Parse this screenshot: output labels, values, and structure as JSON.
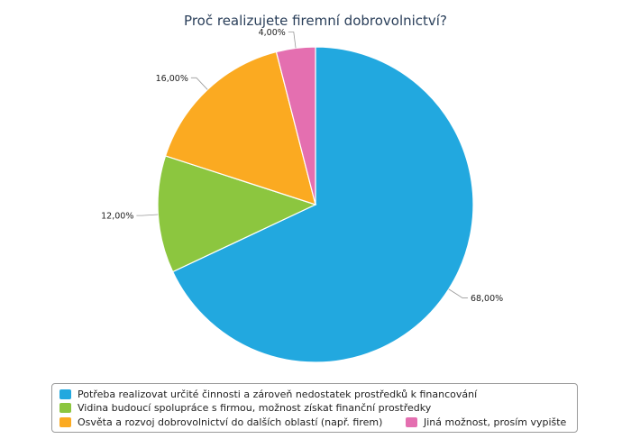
{
  "chart_data": {
    "type": "pie",
    "title": "Proč realizujete firemní dobrovolnictví?",
    "slices": [
      {
        "label": "Potřeba realizovat určité činnosti a zároveň nedostatek prostředků k financování",
        "value": 68,
        "value_label": "68,00%",
        "color": "#22a8df"
      },
      {
        "label": "Vidina budoucí spolupráce s firmou, možnost získat finanční prostředky",
        "value": 12,
        "value_label": "12,00%",
        "color": "#8cc63f"
      },
      {
        "label": "Osvěta a rozvoj dobrovolnictví do dalších oblastí (např. firem)",
        "value": 16,
        "value_label": "16,00%",
        "color": "#fbaa21"
      },
      {
        "label": "Jiná možnost, prosím vypište",
        "value": 4,
        "value_label": "4,00%",
        "color": "#e46fb0"
      }
    ],
    "start_angle": "12 o'clock",
    "direction": "clockwise",
    "legend_position": "bottom"
  }
}
